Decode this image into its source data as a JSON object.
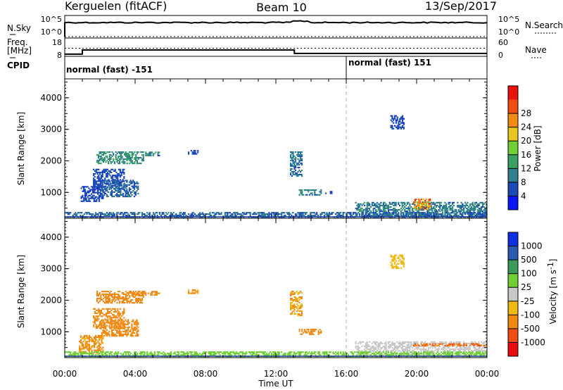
{
  "header": {
    "station": "Kerguelen (fitACF)",
    "beam": "Beam 10",
    "date": "13/Sep/2017"
  },
  "top_panels": {
    "nsky": {
      "label": "N.Sky",
      "ticks": [
        "10^5",
        "10^0"
      ]
    },
    "nsearch": {
      "label": "N.Search",
      "ticks": [
        "10^5",
        "10^0"
      ]
    },
    "freq": {
      "label": "Freq.",
      "unit": "[MHz]",
      "ticks": [
        "18",
        "8"
      ]
    },
    "nave": {
      "label": "Nave",
      "ticks": [
        "60",
        "0"
      ]
    },
    "cpid": {
      "label": "CPID",
      "segments": [
        {
          "text": "normal (fast) -151",
          "start_h": 0,
          "end_h": 16
        },
        {
          "text": "normal (fast) 151",
          "start_h": 16,
          "end_h": 24
        }
      ]
    }
  },
  "power_panel": {
    "ylabel": "Slant Range [km]",
    "yticks": [
      "1000",
      "2000",
      "3000",
      "4000"
    ],
    "colorbar_title": "Power [dB]",
    "colorbar_ticks": [
      "4",
      "8",
      "12",
      "16",
      "20",
      "24",
      "28"
    ],
    "colors": [
      "#0a14f5",
      "#1c4ab8",
      "#2f7f8f",
      "#3aa064",
      "#6fcf35",
      "#e8c81e",
      "#f08b14",
      "#f04d12",
      "#e8140c"
    ]
  },
  "velocity_panel": {
    "ylabel": "Slant Range [km]",
    "yticks": [
      "1000",
      "2000",
      "3000",
      "4000"
    ],
    "colorbar_title": "Velocity [m s",
    "colorbar_sup": "-1",
    "colorbar_title_end": "]",
    "colorbar_ticks": [
      "-1000",
      "-500",
      "-100",
      "-25",
      "25",
      "100",
      "500",
      "1000"
    ],
    "colors": [
      "#e80c0c",
      "#f04d12",
      "#f08a14",
      "#f0b814",
      "#c8c8c8",
      "#6fcf35",
      "#3a9a5a",
      "#2a5ab0",
      "#0f30e0"
    ]
  },
  "xaxis": {
    "label": "Time UT",
    "ticks": [
      "00:00",
      "04:00",
      "08:00",
      "12:00",
      "16:00",
      "20:00",
      "00:00"
    ]
  },
  "chart_data": {
    "type": "heatmap",
    "x_range_hours": [
      0,
      24
    ],
    "y_range_km": [
      180,
      4600
    ],
    "marker_time_h": 16,
    "freq_series": [
      {
        "t": 0,
        "f": 9
      },
      {
        "t": 1,
        "f": 11.8
      },
      {
        "t": 13,
        "f": 11.8
      },
      {
        "t": 13.05,
        "f": 9.5
      },
      {
        "t": 24,
        "f": 9.5
      }
    ],
    "nave_level": 30,
    "power_regions": [
      {
        "t0": 1.8,
        "t1": 4.5,
        "r0": 1900,
        "r1": 2300,
        "v": 12
      },
      {
        "t0": 4.5,
        "t1": 5.4,
        "r0": 2150,
        "r1": 2300,
        "v": 10
      },
      {
        "t0": 1.6,
        "t1": 3.4,
        "r0": 1100,
        "r1": 1750,
        "v": 6
      },
      {
        "t0": 2.0,
        "t1": 4.2,
        "r0": 850,
        "r1": 1400,
        "v": 8
      },
      {
        "t0": 0.9,
        "t1": 2.2,
        "r0": 700,
        "r1": 1200,
        "v": 5
      },
      {
        "t0": 12.8,
        "t1": 13.5,
        "r0": 1500,
        "r1": 2300,
        "v": 9
      },
      {
        "t0": 13.3,
        "t1": 14.6,
        "r0": 900,
        "r1": 1100,
        "v": 10
      },
      {
        "t0": 18.5,
        "t1": 19.3,
        "r0": 3000,
        "r1": 3450,
        "v": 5
      },
      {
        "t0": 16.5,
        "t1": 24,
        "r0": 240,
        "r1": 700,
        "v": 10
      },
      {
        "t0": 19.8,
        "t1": 20.8,
        "r0": 450,
        "r1": 800,
        "v": 26
      },
      {
        "t0": 0,
        "t1": 24,
        "r0": 200,
        "r1": 380,
        "v": 8
      },
      {
        "t0": 7.0,
        "t1": 7.6,
        "r0": 2200,
        "r1": 2350,
        "v": 6
      },
      {
        "t0": 14.8,
        "t1": 15.2,
        "r0": 950,
        "r1": 1050,
        "v": 5
      }
    ],
    "velocity_regions": [
      {
        "t0": 1.8,
        "t1": 4.5,
        "r0": 1900,
        "r1": 2300,
        "v": -200
      },
      {
        "t0": 4.5,
        "t1": 5.4,
        "r0": 2150,
        "r1": 2300,
        "v": -150
      },
      {
        "t0": 1.6,
        "t1": 3.4,
        "r0": 1100,
        "r1": 1750,
        "v": -150
      },
      {
        "t0": 2.0,
        "t1": 4.2,
        "r0": 850,
        "r1": 1400,
        "v": -300
      },
      {
        "t0": 0.8,
        "t1": 2.2,
        "r0": 300,
        "r1": 900,
        "v": -120
      },
      {
        "t0": 12.8,
        "t1": 13.5,
        "r0": 1500,
        "r1": 2300,
        "v": -100
      },
      {
        "t0": 13.3,
        "t1": 14.6,
        "r0": 900,
        "r1": 1100,
        "v": -200
      },
      {
        "t0": 18.5,
        "t1": 19.3,
        "r0": 3000,
        "r1": 3450,
        "v": -50
      },
      {
        "t0": 16.5,
        "t1": 24,
        "r0": 240,
        "r1": 700,
        "v": 0
      },
      {
        "t0": 19.8,
        "t1": 24,
        "r0": 540,
        "r1": 640,
        "v": -500
      },
      {
        "t0": 0,
        "t1": 24,
        "r0": 200,
        "r1": 380,
        "v": 60
      },
      {
        "t0": 7.0,
        "t1": 7.6,
        "r0": 2200,
        "r1": 2350,
        "v": -100
      }
    ]
  }
}
